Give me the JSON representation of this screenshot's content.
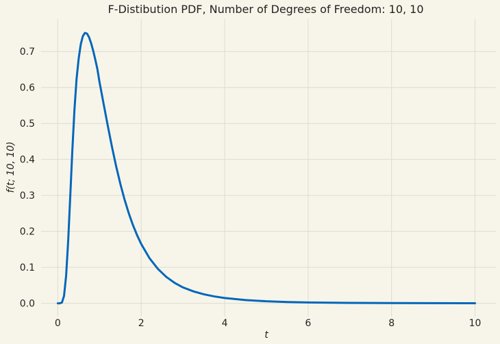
{
  "chart_data": {
    "type": "line",
    "title": "F-Distibution PDF, Number of Degrees of Freedom: 10, 10",
    "xlabel": "t",
    "ylabel": "f(t; 10, 10)",
    "xlim": [
      -0.4,
      10.5
    ],
    "ylim": [
      -0.037,
      0.79
    ],
    "xticks": [
      0,
      2,
      4,
      6,
      8,
      10
    ],
    "xtick_labels": [
      "0",
      "2",
      "4",
      "6",
      "8",
      "10"
    ],
    "yticks": [
      0.0,
      0.1,
      0.2,
      0.3,
      0.4,
      0.5,
      0.6,
      0.7
    ],
    "ytick_labels": [
      "0.0",
      "0.1",
      "0.2",
      "0.3",
      "0.4",
      "0.5",
      "0.6",
      "0.7"
    ],
    "grid": true,
    "line_color": "#0066bb",
    "series": [
      {
        "x": [
          0,
          0.05,
          0.1,
          0.15,
          0.2,
          0.25,
          0.3,
          0.35,
          0.4,
          0.45,
          0.5,
          0.55,
          0.6,
          0.65,
          0.7,
          0.75,
          0.8,
          0.85,
          0.9,
          0.95,
          1.0,
          1.1,
          1.2,
          1.3,
          1.4,
          1.5,
          1.6,
          1.7,
          1.8,
          1.9,
          2.0,
          2.2,
          2.4,
          2.6,
          2.8,
          3.0,
          3.25,
          3.5,
          3.75,
          4.0,
          4.5,
          5.0,
          5.5,
          6.0,
          7.0,
          8.0,
          9.0,
          10.0
        ],
        "y": [
          0.0,
          1e-05,
          0.0021,
          0.0206,
          0.0769,
          0.1754,
          0.3003,
          0.4281,
          0.5393,
          0.6238,
          0.6799,
          0.7197,
          0.7427,
          0.7519,
          0.75,
          0.7396,
          0.7228,
          0.7015,
          0.6771,
          0.6507,
          0.6152,
          0.5535,
          0.4925,
          0.4341,
          0.3803,
          0.3318,
          0.2886,
          0.2508,
          0.2179,
          0.1894,
          0.1647,
          0.125,
          0.0955,
          0.0734,
          0.0568,
          0.0442,
          0.0331,
          0.0251,
          0.0191,
          0.0147,
          0.0089,
          0.0056,
          0.0036,
          0.0024,
          0.0011,
          0.0006,
          0.0003,
          0.0002
        ]
      }
    ]
  }
}
